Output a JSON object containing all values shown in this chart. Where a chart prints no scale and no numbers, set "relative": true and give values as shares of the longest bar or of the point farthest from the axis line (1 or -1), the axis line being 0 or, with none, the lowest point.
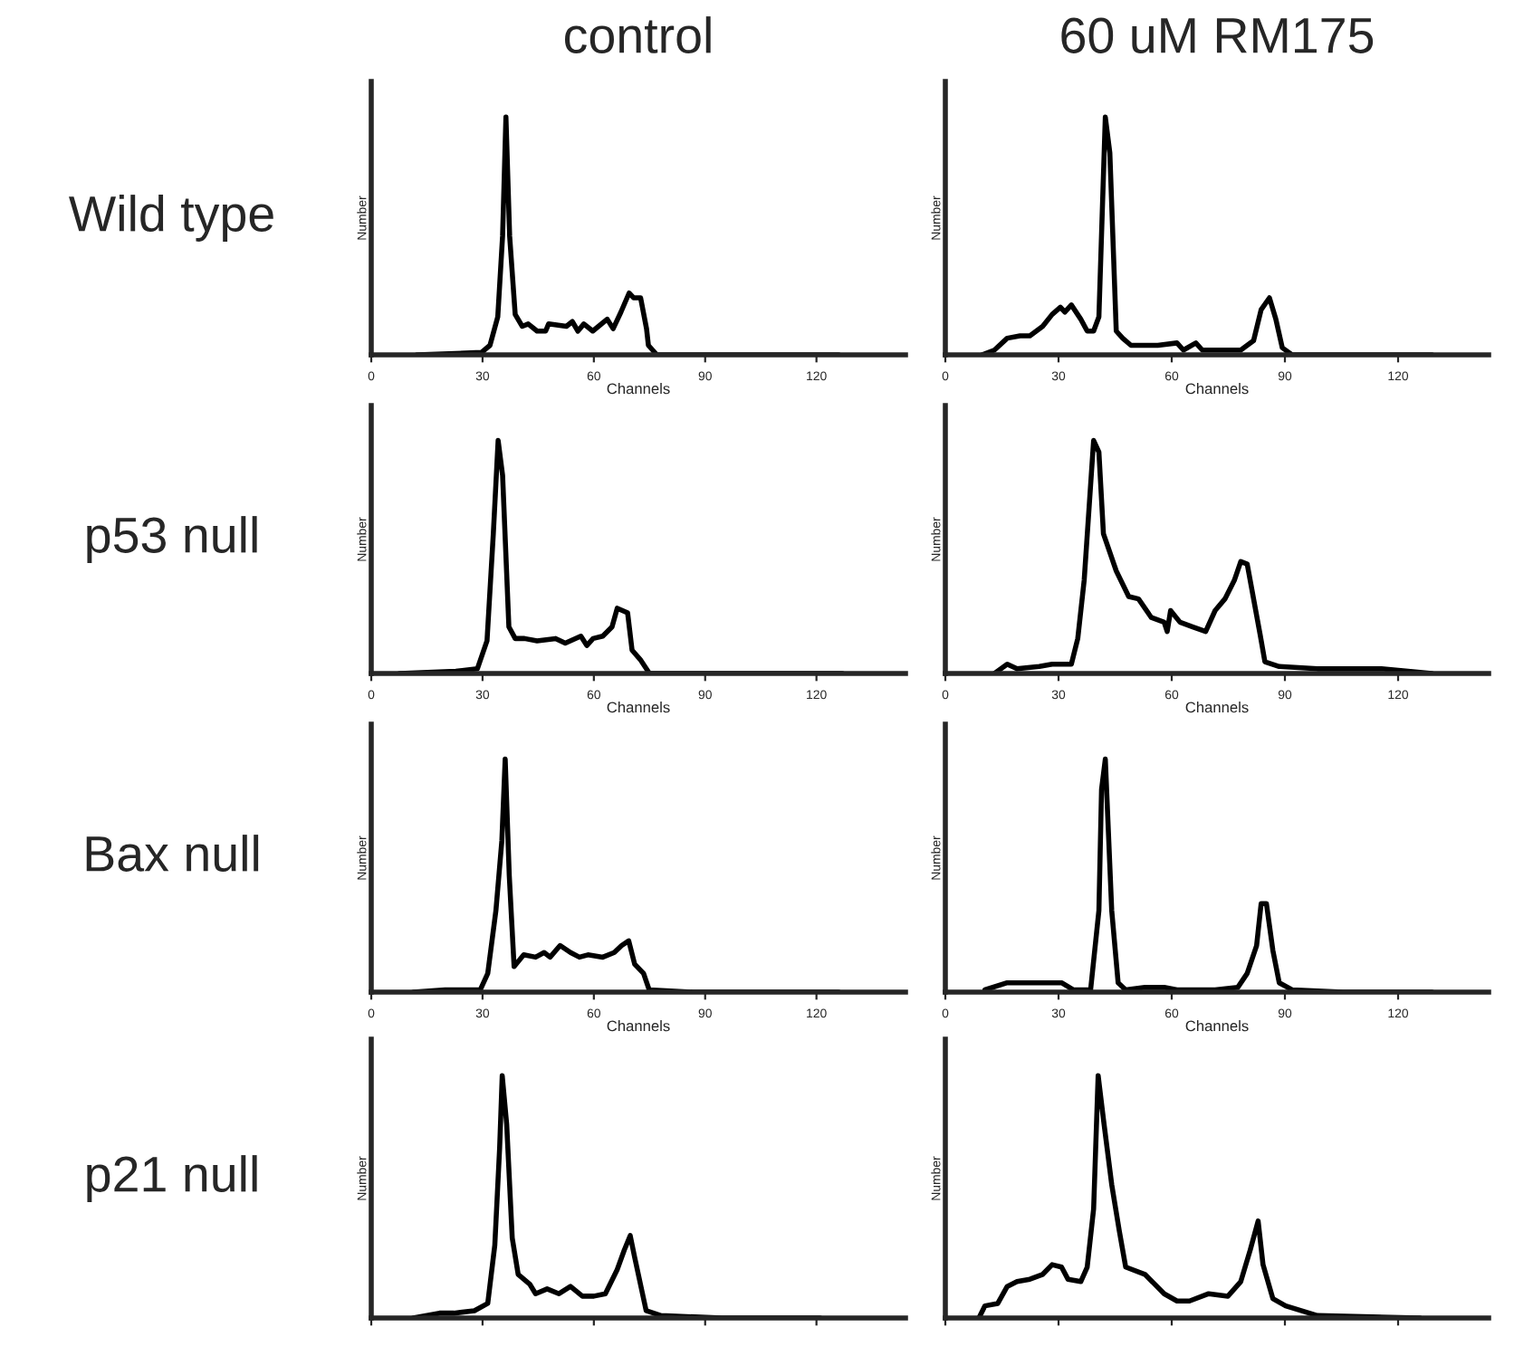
{
  "chart_data": [
    {
      "type": "line",
      "title": "control",
      "annotations": [
        "Wild type"
      ],
      "xlabel": "Channels",
      "ylabel": "Number",
      "relative": true,
      "xlim": [
        0,
        144
      ],
      "xticks": [
        0,
        30,
        60,
        90,
        120
      ],
      "series": [
        {
          "color": "#000000",
          "x": [
            12.3,
            29.7,
            32,
            34.1,
            35.4,
            36.3,
            37.3,
            38.8,
            40.7,
            42.3,
            44.7,
            47,
            47.8,
            52.6,
            54.2,
            55.7,
            57.3,
            59.7,
            63.6,
            65.2,
            67.3,
            69.5,
            70.7,
            72.6,
            74.2,
            74.7,
            77,
            86.5,
            102,
            121,
            126
          ],
          "values": [
            0,
            0.01,
            0.04,
            0.16,
            0.5,
            1,
            0.5,
            0.17,
            0.12,
            0.13,
            0.1,
            0.1,
            0.13,
            0.12,
            0.14,
            0.1,
            0.13,
            0.1,
            0.15,
            0.11,
            0.18,
            0.26,
            0.24,
            0.24,
            0.11,
            0.04,
            0,
            0,
            0,
            0,
            0
          ]
        }
      ]
    },
    {
      "type": "line",
      "title": "60 uM RM175",
      "xlabel": "Channels",
      "ylabel": "Number",
      "relative": true,
      "xlim": [
        0,
        144
      ],
      "xticks": [
        0,
        30,
        60,
        90,
        120
      ],
      "series": [
        {
          "color": "#000000",
          "x": [
            9.7,
            13,
            16.4,
            19.8,
            22.4,
            25.8,
            28.3,
            30.5,
            31.7,
            33.4,
            35.9,
            37.6,
            39.3,
            40.7,
            42.4,
            43.6,
            45.3,
            47,
            49.2,
            56.3,
            61.4,
            63.1,
            66.4,
            68.1,
            78.3,
            81.7,
            83.7,
            85.9,
            87.6,
            89.3,
            91.9,
            129
          ],
          "values": [
            0,
            0.02,
            0.07,
            0.08,
            0.08,
            0.12,
            0.17,
            0.2,
            0.18,
            0.21,
            0.15,
            0.1,
            0.1,
            0.16,
            1,
            0.85,
            0.1,
            0.07,
            0.04,
            0.04,
            0.05,
            0.02,
            0.05,
            0.02,
            0.02,
            0.06,
            0.19,
            0.24,
            0.15,
            0.03,
            0,
            0
          ]
        }
      ]
    },
    {
      "type": "line",
      "annotations": [
        "p53 null"
      ],
      "xlabel": "Channels",
      "ylabel": "Number",
      "relative": true,
      "xlim": [
        0,
        144
      ],
      "xticks": [
        0,
        30,
        60,
        90,
        120
      ],
      "series": [
        {
          "color": "#000000",
          "x": [
            7.6,
            22.8,
            28.6,
            31.2,
            32.9,
            34.2,
            35.4,
            37.1,
            38.8,
            41.3,
            44.7,
            49.7,
            52.3,
            56.5,
            58.1,
            59.8,
            62.4,
            64.9,
            66.3,
            69.1,
            70.3,
            72.5,
            75,
            91.8,
            112,
            127
          ],
          "values": [
            0,
            0.01,
            0.02,
            0.14,
            0.6,
            1,
            0.85,
            0.2,
            0.15,
            0.15,
            0.14,
            0.15,
            0.13,
            0.16,
            0.12,
            0.15,
            0.16,
            0.2,
            0.28,
            0.26,
            0.1,
            0.06,
            0,
            0,
            0,
            0
          ]
        }
      ]
    },
    {
      "type": "line",
      "xlabel": "Channels",
      "ylabel": "Number",
      "relative": true,
      "xlim": [
        0,
        144
      ],
      "xticks": [
        0,
        30,
        60,
        90,
        120
      ],
      "series": [
        {
          "color": "#000000",
          "x": [
            13,
            16.4,
            19,
            24.9,
            28.3,
            33.4,
            35.1,
            36.8,
            39.3,
            40.7,
            41.9,
            45.3,
            48.6,
            51.2,
            54.6,
            58,
            58.8,
            59.7,
            62.2,
            65.6,
            69,
            71.5,
            74.1,
            76.6,
            78.3,
            80,
            83.4,
            84.7,
            88.5,
            98.6,
            115.6,
            129
          ],
          "values": [
            0,
            0.04,
            0.02,
            0.03,
            0.04,
            0.04,
            0.15,
            0.4,
            1,
            0.95,
            0.6,
            0.44,
            0.33,
            0.32,
            0.24,
            0.22,
            0.18,
            0.27,
            0.22,
            0.2,
            0.18,
            0.27,
            0.32,
            0.4,
            0.48,
            0.47,
            0.17,
            0.05,
            0.03,
            0.02,
            0.02,
            0
          ]
        }
      ]
    },
    {
      "type": "line",
      "annotations": [
        "Bax null"
      ],
      "xlabel": "Channels",
      "ylabel": "Number",
      "relative": true,
      "xlim": [
        0,
        144
      ],
      "xticks": [
        0,
        30,
        60,
        90,
        120
      ],
      "series": [
        {
          "color": "#000000",
          "x": [
            11.3,
            19.9,
            29.4,
            31.4,
            33.6,
            35.2,
            36.1,
            37.2,
            38.5,
            41.1,
            44.3,
            46.6,
            48.2,
            50.9,
            53.7,
            56.1,
            58.4,
            62.4,
            65.5,
            67.5,
            69.4,
            71,
            73.4,
            74.9,
            86.7,
            102.4,
            126
          ],
          "values": [
            0,
            0.01,
            0.01,
            0.08,
            0.35,
            0.65,
            1,
            0.5,
            0.11,
            0.16,
            0.15,
            0.17,
            0.15,
            0.2,
            0.17,
            0.15,
            0.16,
            0.15,
            0.17,
            0.2,
            0.22,
            0.12,
            0.08,
            0.01,
            0,
            0,
            0
          ]
        }
      ]
    },
    {
      "type": "line",
      "xlabel": "Channels",
      "ylabel": "Number",
      "relative": true,
      "xlim": [
        0,
        144
      ],
      "xticks": [
        0,
        30,
        60,
        90,
        120
      ],
      "series": [
        {
          "color": "#000000",
          "x": [
            10.5,
            16.4,
            20.7,
            30.8,
            33.9,
            38.5,
            40.7,
            41.4,
            42.4,
            44.1,
            45.8,
            47.8,
            52.9,
            58,
            61.4,
            71.5,
            77.5,
            80,
            82.5,
            83.7,
            85.1,
            86.8,
            88.5,
            91.9,
            105.4,
            129
          ],
          "values": [
            0.01,
            0.04,
            0.04,
            0.04,
            0.01,
            0.01,
            0.35,
            0.87,
            1,
            0.35,
            0.04,
            0.01,
            0.02,
            0.02,
            0.01,
            0.01,
            0.02,
            0.08,
            0.2,
            0.38,
            0.38,
            0.18,
            0.04,
            0.01,
            0,
            0
          ]
        }
      ]
    },
    {
      "type": "line",
      "annotations": [
        "p21 null"
      ],
      "ylabel": "Number",
      "relative": true,
      "tick_labels": false,
      "xlim": [
        0,
        144
      ],
      "xticks": [
        0,
        30,
        60,
        90,
        120
      ],
      "series": [
        {
          "color": "#000000",
          "x": [
            11.3,
            18.4,
            22.3,
            27.8,
            31.4,
            33.3,
            34.6,
            35.3,
            36.5,
            38,
            39.6,
            42.7,
            44.3,
            47.4,
            50.6,
            53.7,
            56.9,
            60,
            63.1,
            66.3,
            68.2,
            69.8,
            71,
            74.1,
            78.1,
            94.6,
            121
          ],
          "values": [
            0,
            0.02,
            0.02,
            0.03,
            0.06,
            0.3,
            0.7,
            1,
            0.8,
            0.33,
            0.18,
            0.14,
            0.1,
            0.12,
            0.1,
            0.13,
            0.09,
            0.09,
            0.1,
            0.2,
            0.28,
            0.34,
            0.25,
            0.03,
            0.01,
            0,
            0
          ]
        }
      ]
    },
    {
      "type": "line",
      "ylabel": "Number",
      "relative": true,
      "tick_labels": false,
      "xlim": [
        0,
        144
      ],
      "xticks": [
        0,
        30,
        60,
        90,
        120
      ],
      "series": [
        {
          "color": "#000000",
          "x": [
            8.9,
            10.5,
            13.9,
            16.4,
            19,
            22.4,
            25.8,
            28.3,
            30.8,
            32.5,
            35.9,
            37.6,
            39.3,
            40.5,
            41.9,
            44.1,
            46.1,
            47.8,
            52.9,
            58,
            61.4,
            64.7,
            69.8,
            74.9,
            78.3,
            80.8,
            82.9,
            84.2,
            86.8,
            90.2,
            98.6,
            125.8
          ],
          "values": [
            0,
            0.05,
            0.06,
            0.13,
            0.15,
            0.16,
            0.18,
            0.22,
            0.21,
            0.16,
            0.15,
            0.21,
            0.45,
            1,
            0.82,
            0.55,
            0.36,
            0.21,
            0.18,
            0.1,
            0.07,
            0.07,
            0.1,
            0.09,
            0.15,
            0.28,
            0.4,
            0.22,
            0.08,
            0.05,
            0.01,
            0
          ]
        }
      ]
    }
  ]
}
